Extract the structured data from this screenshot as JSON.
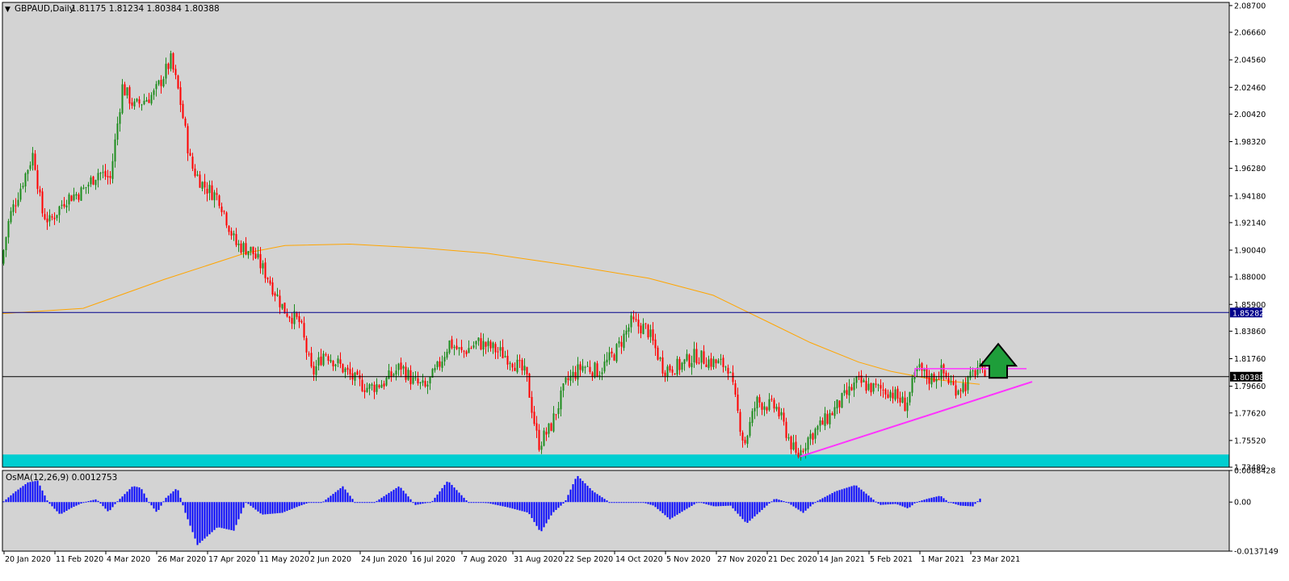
{
  "chart_data": [
    {
      "type": "candlestick",
      "title": "GBPAUD,Daily",
      "ohlc_label": "1.81175 1.81234 1.80384 1.80388",
      "symbol": "GBPAUD",
      "timeframe": "Daily",
      "last_price": 1.80388,
      "ylim": [
        1.7348,
        2.0894
      ],
      "y_ticks": [
        "2.08700",
        "2.06660",
        "2.04560",
        "2.02460",
        "2.00420",
        "1.98320",
        "1.96280",
        "1.94180",
        "1.92140",
        "1.90040",
        "1.88000",
        "1.85900",
        "1.83860",
        "1.81760",
        "1.79660",
        "1.77620",
        "1.75520",
        "1.73480"
      ],
      "x_ticks": [
        "20 Jan 2020",
        "11 Feb 2020",
        "4 Mar 2020",
        "26 Mar 2020",
        "17 Apr 2020",
        "11 May 2020",
        "2 Jun 2020",
        "24 Jun 2020",
        "16 Jul 2020",
        "7 Aug 2020",
        "31 Aug 2020",
        "22 Sep 2020",
        "14 Oct 2020",
        "5 Nov 2020",
        "27 Nov 2020",
        "21 Dec 2020",
        "14 Jan 2021",
        "5 Feb 2021",
        "1 Mar 2021",
        "23 Mar 2021"
      ],
      "price_path": [
        [
          0,
          1.89
        ],
        [
          10,
          1.925
        ],
        [
          40,
          1.975
        ],
        [
          50,
          1.93
        ],
        [
          60,
          1.922
        ],
        [
          80,
          1.94
        ],
        [
          100,
          1.945
        ],
        [
          120,
          1.96
        ],
        [
          135,
          1.955
        ],
        [
          150,
          2.025
        ],
        [
          165,
          2.01
        ],
        [
          190,
          2.02
        ],
        [
          210,
          2.045
        ],
        [
          220,
          2.02
        ],
        [
          235,
          1.965
        ],
        [
          250,
          1.95
        ],
        [
          270,
          1.94
        ],
        [
          290,
          1.905
        ],
        [
          310,
          1.9
        ],
        [
          330,
          1.88
        ],
        [
          350,
          1.855
        ],
        [
          370,
          1.845
        ],
        [
          385,
          1.805
        ],
        [
          400,
          1.823
        ],
        [
          420,
          1.812
        ],
        [
          440,
          1.8
        ],
        [
          455,
          1.795
        ],
        [
          475,
          1.8
        ],
        [
          495,
          1.812
        ],
        [
          510,
          1.8
        ],
        [
          525,
          1.795
        ],
        [
          540,
          1.81
        ],
        [
          555,
          1.83
        ],
        [
          570,
          1.822
        ],
        [
          590,
          1.83
        ],
        [
          610,
          1.825
        ],
        [
          630,
          1.818
        ],
        [
          650,
          1.805
        ],
        [
          665,
          1.752
        ],
        [
          680,
          1.765
        ],
        [
          700,
          1.8
        ],
        [
          720,
          1.812
        ],
        [
          740,
          1.808
        ],
        [
          760,
          1.822
        ],
        [
          780,
          1.845
        ],
        [
          800,
          1.84
        ],
        [
          820,
          1.81
        ],
        [
          840,
          1.812
        ],
        [
          860,
          1.82
        ],
        [
          880,
          1.815
        ],
        [
          900,
          1.812
        ],
        [
          920,
          1.752
        ],
        [
          935,
          1.785
        ],
        [
          960,
          1.78
        ],
        [
          985,
          1.742
        ],
        [
          1000,
          1.758
        ],
        [
          1020,
          1.77
        ],
        [
          1040,
          1.785
        ],
        [
          1060,
          1.8
        ],
        [
          1080,
          1.795
        ],
        [
          1100,
          1.793
        ],
        [
          1120,
          1.782
        ],
        [
          1135,
          1.81
        ],
        [
          1150,
          1.802
        ],
        [
          1165,
          1.808
        ],
        [
          1180,
          1.795
        ],
        [
          1195,
          1.798
        ],
        [
          1210,
          1.812
        ],
        [
          1215,
          1.804
        ]
      ],
      "moving_average": {
        "color": "#FFA500",
        "points": [
          [
            0,
            1.852
          ],
          [
            100,
            1.856
          ],
          [
            200,
            1.878
          ],
          [
            300,
            1.898
          ],
          [
            350,
            1.904
          ],
          [
            430,
            1.905
          ],
          [
            520,
            1.902
          ],
          [
            600,
            1.898
          ],
          [
            700,
            1.889
          ],
          [
            800,
            1.879
          ],
          [
            880,
            1.866
          ],
          [
            950,
            1.845
          ],
          [
            1000,
            1.83
          ],
          [
            1060,
            1.815
          ],
          [
            1100,
            1.808
          ],
          [
            1150,
            1.802
          ],
          [
            1210,
            1.798
          ]
        ]
      },
      "horizontal_lines": [
        {
          "price": 1.85282,
          "label": "1.85282",
          "color": "#00008B"
        },
        {
          "price": 1.80388,
          "label": "1.80388",
          "color": "#000000"
        }
      ],
      "support_zone": {
        "from": 1.7348,
        "to": 1.7445,
        "color": "#00CED1"
      },
      "trendline": {
        "color": "#FF33FF",
        "points": [
          [
            988,
            1.743
          ],
          [
            1275,
            1.8
          ]
        ]
      },
      "resistance_segment": {
        "color": "#FF33FF",
        "x1": 1130,
        "x2": 1268,
        "price": 1.81
      },
      "arrow": {
        "direction": "up",
        "color": "#1E9E3A"
      },
      "colors": {
        "background": "#D3D3D3",
        "bull": "#1E8C1E",
        "bear": "#FF0000",
        "grid_text": "#000000"
      },
      "indicator": {
        "type": "bar",
        "label": "OsMA(12,26,9) 0.0012753",
        "ylim": [
          -0.0137149,
          0.0088428
        ],
        "y_ticks": [
          "0.0088428",
          "0.00",
          "-0.0137149"
        ],
        "color": "#0000FF",
        "path": [
          [
            0,
            0.0002
          ],
          [
            15,
            0.003
          ],
          [
            30,
            0.0055
          ],
          [
            42,
            0.006
          ],
          [
            55,
            0.0
          ],
          [
            70,
            -0.0035
          ],
          [
            85,
            -0.0015
          ],
          [
            100,
            0.0
          ],
          [
            115,
            0.0008
          ],
          [
            130,
            -0.0028
          ],
          [
            140,
            0.0
          ],
          [
            160,
            0.0045
          ],
          [
            170,
            0.004
          ],
          [
            180,
            0.0
          ],
          [
            190,
            -0.003
          ],
          [
            200,
            0.001
          ],
          [
            215,
            0.004
          ],
          [
            225,
            -0.003
          ],
          [
            240,
            -0.012
          ],
          [
            250,
            -0.01
          ],
          [
            265,
            -0.007
          ],
          [
            285,
            -0.008
          ],
          [
            300,
            0.0
          ],
          [
            320,
            -0.0035
          ],
          [
            345,
            -0.003
          ],
          [
            365,
            -0.0012
          ],
          [
            380,
            0.0
          ],
          [
            395,
            0.0
          ],
          [
            420,
            0.0044
          ],
          [
            435,
            0.0
          ],
          [
            460,
            0.0
          ],
          [
            490,
            0.0045
          ],
          [
            510,
            -0.0008
          ],
          [
            530,
            0.0
          ],
          [
            550,
            0.006
          ],
          [
            575,
            0.0
          ],
          [
            600,
            -0.0003
          ],
          [
            625,
            -0.0015
          ],
          [
            650,
            -0.003
          ],
          [
            665,
            -0.0085
          ],
          [
            680,
            -0.003
          ],
          [
            695,
            0.0
          ],
          [
            710,
            0.0075
          ],
          [
            730,
            0.003
          ],
          [
            750,
            0.0
          ],
          [
            770,
            0.0
          ],
          [
            790,
            0.0
          ],
          [
            805,
            -0.001
          ],
          [
            825,
            -0.0048
          ],
          [
            845,
            -0.002
          ],
          [
            860,
            0.0
          ],
          [
            880,
            -0.0012
          ],
          [
            900,
            -0.001
          ],
          [
            920,
            -0.006
          ],
          [
            935,
            -0.003
          ],
          [
            955,
            0.001
          ],
          [
            970,
            0.0
          ],
          [
            990,
            -0.003
          ],
          [
            1005,
            0.0
          ],
          [
            1030,
            0.003
          ],
          [
            1055,
            0.0048
          ],
          [
            1070,
            0.002
          ],
          [
            1085,
            -0.0008
          ],
          [
            1105,
            -0.0005
          ],
          [
            1120,
            -0.0018
          ],
          [
            1130,
            0.0
          ],
          [
            1145,
            0.001
          ],
          [
            1160,
            0.0018
          ],
          [
            1170,
            0.0
          ],
          [
            1185,
            -0.001
          ],
          [
            1200,
            -0.0012
          ],
          [
            1210,
            0.0012
          ]
        ]
      }
    }
  ]
}
